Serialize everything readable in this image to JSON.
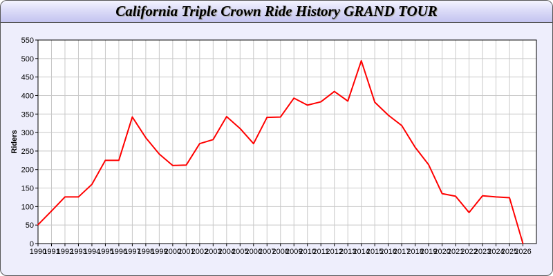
{
  "chart_data": {
    "type": "line",
    "title": "California Triple Crown Ride History GRAND TOUR",
    "xlabel": "",
    "ylabel": "Riders",
    "xlim": [
      1990,
      2027
    ],
    "ylim": [
      0,
      550
    ],
    "yticks": [
      0,
      50,
      100,
      150,
      200,
      250,
      300,
      350,
      400,
      450,
      500,
      550
    ],
    "grid": true,
    "line_color": "#ff0000",
    "x": [
      1990,
      1991,
      1992,
      1993,
      1994,
      1995,
      1996,
      1997,
      1998,
      1999,
      2000,
      2001,
      2002,
      2003,
      2004,
      2005,
      2006,
      2007,
      2008,
      2009,
      2010,
      2011,
      2012,
      2013,
      2014,
      2015,
      2016,
      2017,
      2018,
      2019,
      2020,
      2021,
      2022,
      2023,
      2024,
      2025,
      2026
    ],
    "values": [
      51,
      88,
      126,
      126,
      160,
      225,
      225,
      342,
      286,
      242,
      211,
      212,
      270,
      281,
      343,
      311,
      270,
      341,
      342,
      393,
      374,
      383,
      411,
      385,
      494,
      382,
      347,
      319,
      260,
      213,
      135,
      128,
      84,
      129,
      126,
      124,
      0
    ]
  }
}
